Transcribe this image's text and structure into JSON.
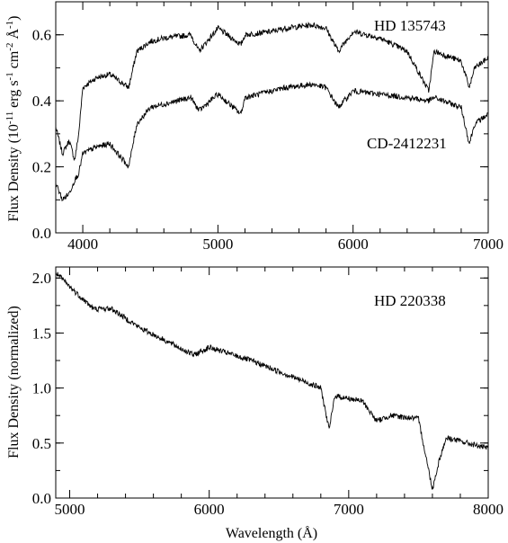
{
  "chart_data": [
    {
      "type": "line",
      "xlabel": "",
      "ylabel": "Flux Density (10-11 erg s-1 cm-2 Å-1)",
      "xlim": [
        3800,
        7000
      ],
      "ylim": [
        0.0,
        0.7
      ],
      "xticks": [
        4000,
        5000,
        6000,
        7000
      ],
      "yticks": [
        0.0,
        0.2,
        0.4,
        0.6
      ],
      "ytick_labels": [
        "0.0",
        "0.2",
        "0.4",
        "0.6"
      ],
      "grid": false,
      "series": [
        {
          "name": "HD 135743",
          "x": [
            3800,
            3850,
            3900,
            3940,
            3970,
            4000,
            4100,
            4200,
            4340,
            4400,
            4500,
            4600,
            4800,
            4860,
            5000,
            5170,
            5200,
            5400,
            5500,
            5700,
            5800,
            5890,
            6000,
            6200,
            6400,
            6560,
            6600,
            6800,
            6860,
            6900,
            7000
          ],
          "y": [
            0.32,
            0.24,
            0.28,
            0.22,
            0.3,
            0.44,
            0.47,
            0.48,
            0.44,
            0.55,
            0.58,
            0.59,
            0.6,
            0.55,
            0.62,
            0.57,
            0.6,
            0.61,
            0.62,
            0.63,
            0.62,
            0.55,
            0.61,
            0.59,
            0.55,
            0.43,
            0.55,
            0.52,
            0.44,
            0.5,
            0.53
          ]
        },
        {
          "name": "CD-2412231",
          "x": [
            3800,
            3850,
            3900,
            3940,
            3970,
            4000,
            4100,
            4200,
            4340,
            4400,
            4500,
            4600,
            4800,
            4860,
            5000,
            5170,
            5200,
            5400,
            5500,
            5700,
            5800,
            5890,
            6000,
            6200,
            6400,
            6560,
            6600,
            6800,
            6860,
            6900,
            7000
          ],
          "y": [
            0.15,
            0.1,
            0.12,
            0.16,
            0.18,
            0.24,
            0.26,
            0.27,
            0.2,
            0.33,
            0.38,
            0.39,
            0.41,
            0.37,
            0.42,
            0.36,
            0.41,
            0.43,
            0.44,
            0.45,
            0.44,
            0.38,
            0.43,
            0.42,
            0.41,
            0.4,
            0.41,
            0.38,
            0.27,
            0.33,
            0.36
          ]
        }
      ],
      "annotations": [
        "HD 135743",
        "CD-2412231"
      ]
    },
    {
      "type": "line",
      "xlabel": "Wavelength (Å)",
      "ylabel": "Flux Density (normalized)",
      "xlim": [
        4900,
        8000
      ],
      "ylim": [
        0.0,
        2.1
      ],
      "xticks": [
        5000,
        6000,
        7000,
        8000
      ],
      "yticks": [
        0.0,
        0.5,
        1.0,
        1.5,
        2.0
      ],
      "ytick_labels": [
        "0.0",
        "0.5",
        "1.0",
        "1.5",
        "2.0"
      ],
      "grid": false,
      "series": [
        {
          "name": "HD 220338",
          "x": [
            4900,
            5000,
            5170,
            5300,
            5500,
            5890,
            6000,
            6300,
            6500,
            6800,
            6860,
            6900,
            7100,
            7200,
            7300,
            7500,
            7600,
            7650,
            7700,
            8000
          ],
          "y": [
            2.05,
            1.92,
            1.72,
            1.72,
            1.55,
            1.3,
            1.37,
            1.25,
            1.15,
            1.0,
            0.62,
            0.93,
            0.88,
            0.7,
            0.75,
            0.72,
            0.08,
            0.35,
            0.55,
            0.45
          ]
        }
      ],
      "annotations": [
        "HD 220338"
      ]
    }
  ]
}
